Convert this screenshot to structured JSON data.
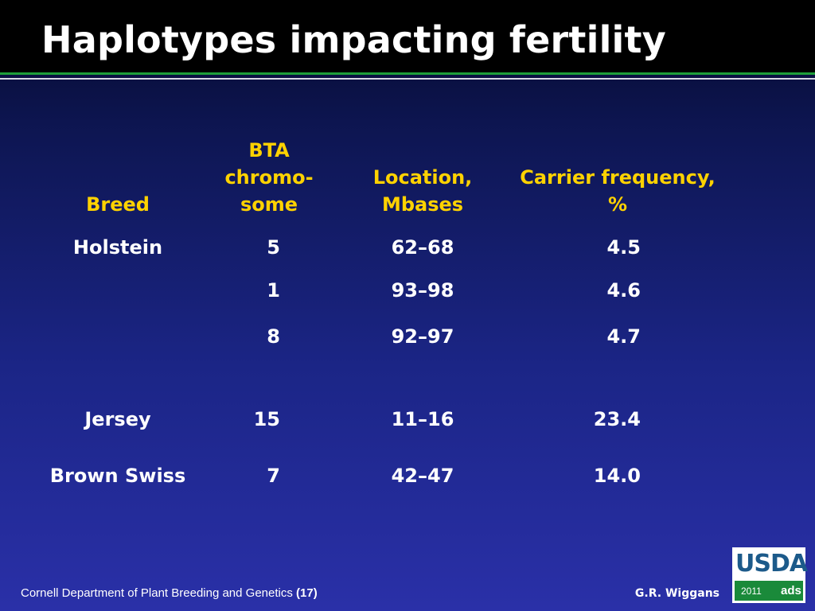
{
  "slide": {
    "title": "Haplotypes impacting fertility"
  },
  "table": {
    "headers": {
      "breed": [
        "Breed"
      ],
      "bta": [
        "BTA",
        "chromo-",
        "some"
      ],
      "location": [
        "Location,",
        "Mbases"
      ],
      "frequency": [
        "Carrier frequency,",
        "%"
      ]
    },
    "rows": [
      {
        "breed": "Holstein",
        "bta": "5",
        "location": "62–68",
        "frequency": "4.5"
      },
      {
        "breed": "",
        "bta": "1",
        "location": "93–98",
        "frequency": "4.6"
      },
      {
        "breed": "",
        "bta": "8",
        "location": "92–97",
        "frequency": "4.7"
      },
      {
        "breed": "Jersey",
        "bta": "15",
        "location": "11–16",
        "frequency": "23.4"
      },
      {
        "breed": "Brown Swiss",
        "bta": "7",
        "location": "42–47",
        "frequency": "14.0"
      }
    ]
  },
  "footer": {
    "left_text": "Cornell Department of Plant Breeding and Genetics",
    "page": "(17)",
    "author": "G.R. Wiggans"
  },
  "logo": {
    "name": "USDA",
    "year": "2011",
    "mark": "ads"
  },
  "colors": {
    "header_text": "#ffd200",
    "title_bar": "#000000",
    "rule_green": "#1f9e3a",
    "logo_blue": "#1c5a8a",
    "logo_green": "#1a8a3a"
  }
}
